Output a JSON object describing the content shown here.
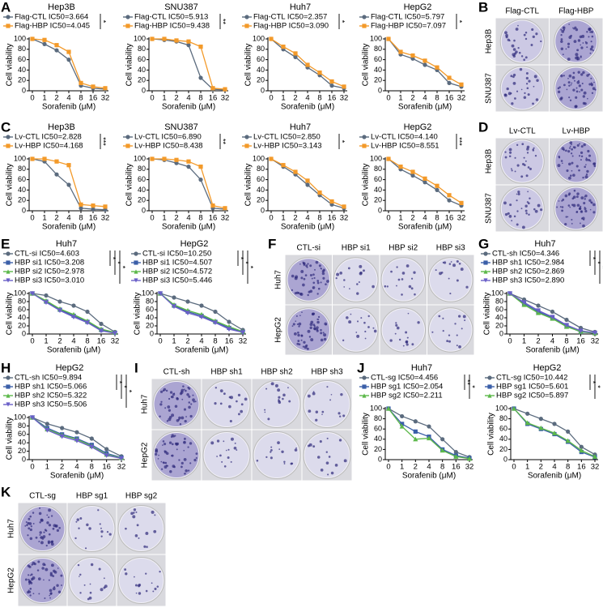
{
  "chart_data": [
    {
      "type": "line",
      "panel": "A",
      "title": "Hep3B",
      "xlabel": "Sorafenib (μM)",
      "ylabel": "Cell viability",
      "categories": [
        "0",
        "1",
        "2",
        "4",
        "8",
        "16",
        "32"
      ],
      "ylim": [
        0,
        100
      ],
      "yticks": [
        0,
        20,
        40,
        60,
        80,
        100
      ],
      "significance": [
        "*"
      ],
      "series": [
        {
          "name": "Flag-CTL IC50=3.664",
          "color": "#5b6b7e",
          "values": [
            100,
            90,
            78,
            60,
            10,
            5,
            3
          ]
        },
        {
          "name": "Flag-HBP IC50=4.045",
          "color": "#f39a2a",
          "values": [
            100,
            98,
            88,
            75,
            15,
            8,
            5
          ]
        }
      ]
    },
    {
      "type": "line",
      "title": "SNU387",
      "xlabel": "Sorafenib (μM)",
      "ylabel": "Cell viability",
      "categories": [
        "0",
        "1",
        "2",
        "4",
        "8",
        "16",
        "32"
      ],
      "ylim": [
        0,
        100
      ],
      "yticks": [
        0,
        20,
        40,
        60,
        80,
        100
      ],
      "significance": [
        "**"
      ],
      "series": [
        {
          "name": "Flag-CTL IC50=5.913",
          "color": "#5b6b7e",
          "values": [
            100,
            98,
            95,
            88,
            25,
            3,
            2
          ]
        },
        {
          "name": "Flag-HBP IC50=9.438",
          "color": "#f39a2a",
          "values": [
            100,
            100,
            97,
            95,
            85,
            5,
            3
          ]
        }
      ]
    },
    {
      "type": "line",
      "title": "Huh7",
      "xlabel": "Sorafenib (μM)",
      "ylabel": "Cell viability",
      "categories": [
        "0",
        "1",
        "2",
        "4",
        "8",
        "16",
        "32"
      ],
      "ylim": [
        0,
        100
      ],
      "yticks": [
        0,
        20,
        40,
        60,
        80,
        100
      ],
      "significance": [
        "*"
      ],
      "series": [
        {
          "name": "Flag-CTL IC50=2.357",
          "color": "#5b6b7e",
          "values": [
            100,
            80,
            65,
            45,
            30,
            10,
            5
          ]
        },
        {
          "name": "Flag-HBP IC50=3.090",
          "color": "#f39a2a",
          "values": [
            100,
            85,
            72,
            50,
            35,
            18,
            8
          ]
        }
      ]
    },
    {
      "type": "line",
      "title": "HepG2",
      "xlabel": "Sorafenib (μM)",
      "ylabel": "Cell viability",
      "categories": [
        "0",
        "1",
        "2",
        "4",
        "8",
        "16",
        "32"
      ],
      "ylim": [
        0,
        100
      ],
      "yticks": [
        0,
        20,
        40,
        60,
        80,
        100
      ],
      "significance": [
        "*"
      ],
      "series": [
        {
          "name": "Flag-CTL IC50=5.797",
          "color": "#5b6b7e",
          "values": [
            100,
            70,
            62,
            50,
            40,
            15,
            8
          ]
        },
        {
          "name": "Flag-HBP IC50=7.097",
          "color": "#f39a2a",
          "values": [
            100,
            75,
            68,
            58,
            45,
            25,
            12
          ]
        }
      ]
    },
    {
      "type": "line",
      "panel": "C",
      "title": "Hep3B",
      "xlabel": "Sorafenib (μM)",
      "ylabel": "Cell viability",
      "categories": [
        "0",
        "1",
        "2",
        "4",
        "8",
        "16",
        "32"
      ],
      "ylim": [
        0,
        100
      ],
      "yticks": [
        0,
        20,
        40,
        60,
        80,
        100
      ],
      "significance": [
        "***"
      ],
      "series": [
        {
          "name": "Lv-CTL  IC50=2.828",
          "color": "#5b6b7e",
          "values": [
            100,
            95,
            70,
            50,
            5,
            3,
            2
          ]
        },
        {
          "name": "Lv-HBP IC50=4.168",
          "color": "#f39a2a",
          "values": [
            100,
            100,
            95,
            88,
            12,
            10,
            8
          ]
        }
      ]
    },
    {
      "type": "line",
      "title": "SNU387",
      "xlabel": "Sorafenib (μM)",
      "ylabel": "Cell viability",
      "categories": [
        "0",
        "1",
        "2",
        "4",
        "8",
        "16",
        "32"
      ],
      "ylim": [
        0,
        100
      ],
      "yticks": [
        0,
        20,
        40,
        60,
        80,
        100
      ],
      "significance": [
        "**"
      ],
      "series": [
        {
          "name": "Lv-CTL  IC50=6.890",
          "color": "#5b6b7e",
          "values": [
            100,
            98,
            92,
            85,
            60,
            5,
            3
          ]
        },
        {
          "name": "Lv-HBP IC50=8.438",
          "color": "#f39a2a",
          "values": [
            100,
            100,
            98,
            95,
            85,
            10,
            5
          ]
        }
      ]
    },
    {
      "type": "line",
      "title": "Huh7",
      "xlabel": "Sorafenib (μM)",
      "ylabel": "Cell viability",
      "categories": [
        "0",
        "1",
        "2",
        "4",
        "8",
        "16",
        "32"
      ],
      "ylim": [
        0,
        100
      ],
      "yticks": [
        0,
        20,
        40,
        60,
        80,
        100
      ],
      "significance": [
        "*"
      ],
      "series": [
        {
          "name": "Lv-CTL  IC50=2.850",
          "color": "#5b6b7e",
          "values": [
            100,
            85,
            70,
            50,
            30,
            12,
            5
          ]
        },
        {
          "name": "Lv-HBP IC50=3.143",
          "color": "#f39a2a",
          "values": [
            100,
            88,
            75,
            58,
            35,
            18,
            8
          ]
        }
      ]
    },
    {
      "type": "line",
      "title": "HepG2",
      "xlabel": "Sorafenib (μM)",
      "ylabel": "Cell viability",
      "categories": [
        "0",
        "1",
        "2",
        "4",
        "8",
        "16",
        "32"
      ],
      "ylim": [
        0,
        100
      ],
      "yticks": [
        0,
        20,
        40,
        60,
        80,
        100
      ],
      "significance": [
        "***"
      ],
      "series": [
        {
          "name": "Lv-CTL  IC50=4.140",
          "color": "#5b6b7e",
          "values": [
            100,
            80,
            68,
            55,
            40,
            20,
            10
          ]
        },
        {
          "name": "Lv-HBP IC50=8.551",
          "color": "#f39a2a",
          "values": [
            100,
            85,
            75,
            62,
            48,
            30,
            15
          ]
        }
      ]
    },
    {
      "type": "line",
      "panel": "E",
      "title": "Huh7",
      "xlabel": "Sorafenib (μM)",
      "ylabel": "Cell viability",
      "categories": [
        "0",
        "1",
        "2",
        "4",
        "8",
        "16",
        "32"
      ],
      "ylim": [
        0,
        100
      ],
      "yticks": [
        0,
        20,
        40,
        60,
        80,
        100
      ],
      "significance": [
        "*",
        "*",
        "*"
      ],
      "series": [
        {
          "name": "CTL-si  IC50=4.603",
          "color": "#5b6b7e",
          "values": [
            100,
            95,
            80,
            70,
            55,
            25,
            5
          ]
        },
        {
          "name": "HBP si1 IC50=3.208",
          "color": "#3b5fa8",
          "values": [
            100,
            80,
            60,
            45,
            30,
            10,
            3
          ]
        },
        {
          "name": "HBP si2 IC50=2.978",
          "color": "#5cb84a",
          "values": [
            100,
            82,
            62,
            48,
            32,
            12,
            4
          ]
        },
        {
          "name": "HBP si3 IC50=3.010",
          "color": "#6a5fc8",
          "values": [
            100,
            78,
            58,
            42,
            28,
            8,
            2
          ]
        }
      ]
    },
    {
      "type": "line",
      "title": "HepG2",
      "xlabel": "Sorafenib (μM)",
      "ylabel": "Cell viability",
      "categories": [
        "0",
        "1",
        "2",
        "4",
        "8",
        "16",
        "32"
      ],
      "ylim": [
        0,
        100
      ],
      "yticks": [
        0,
        20,
        40,
        60,
        80,
        100
      ],
      "significance": [
        "*",
        "*",
        "*"
      ],
      "series": [
        {
          "name": "CTL-si  IC50=10.250",
          "color": "#5b6b7e",
          "values": [
            100,
            90,
            80,
            70,
            55,
            30,
            10
          ]
        },
        {
          "name": "HBP si1 IC50=4.507",
          "color": "#3b5fa8",
          "values": [
            100,
            70,
            55,
            45,
            30,
            15,
            5
          ]
        },
        {
          "name": "HBP si2 IC50=4.572",
          "color": "#5cb84a",
          "values": [
            100,
            72,
            58,
            48,
            32,
            18,
            6
          ]
        },
        {
          "name": "HBP si3 IC50=5.446",
          "color": "#6a5fc8",
          "values": [
            100,
            68,
            52,
            42,
            28,
            12,
            4
          ]
        }
      ]
    },
    {
      "type": "line",
      "panel": "G",
      "title": "Huh7",
      "xlabel": "Sorafenib (μM)",
      "ylabel": "Cell viability",
      "categories": [
        "0",
        "1",
        "2",
        "4",
        "8",
        "16",
        "32"
      ],
      "ylim": [
        0,
        100
      ],
      "yticks": [
        0,
        20,
        40,
        60,
        80,
        100
      ],
      "significance": [
        "*",
        "*",
        "*"
      ],
      "series": [
        {
          "name": "CTL-sh  IC50=4.346",
          "color": "#5b6b7e",
          "values": [
            100,
            85,
            70,
            55,
            35,
            15,
            5
          ]
        },
        {
          "name": "HBP sh1 IC50=2.984",
          "color": "#3b5fa8",
          "values": [
            100,
            75,
            55,
            40,
            20,
            5,
            2
          ]
        },
        {
          "name": "HBP sh2 IC50=2.869",
          "color": "#5cb84a",
          "values": [
            100,
            72,
            52,
            38,
            18,
            6,
            2
          ]
        },
        {
          "name": "HBP sh3 IC50=2.890",
          "color": "#6a5fc8",
          "values": [
            100,
            78,
            58,
            42,
            22,
            8,
            3
          ]
        }
      ]
    },
    {
      "type": "line",
      "panel": "H",
      "title": "HepG2",
      "xlabel": "Sorafenib (μM)",
      "ylabel": "Cell viability",
      "categories": [
        "0",
        "1",
        "2",
        "4",
        "8",
        "16",
        "32"
      ],
      "ylim": [
        0,
        100
      ],
      "yticks": [
        0,
        20,
        40,
        60,
        80,
        100
      ],
      "significance": [
        "*",
        "*",
        "*"
      ],
      "series": [
        {
          "name": "CTL-sh  IC50=9.894",
          "color": "#5b6b7e",
          "values": [
            100,
            85,
            75,
            65,
            50,
            25,
            8
          ]
        },
        {
          "name": "HBP sh1 IC50=5.066",
          "color": "#3b5fa8",
          "values": [
            100,
            75,
            60,
            50,
            35,
            15,
            5
          ]
        },
        {
          "name": "HBP sh2 IC50=5.322",
          "color": "#5cb84a",
          "values": [
            100,
            72,
            58,
            48,
            32,
            12,
            4
          ]
        },
        {
          "name": "HBP sh3 IC50=5.506",
          "color": "#6a5fc8",
          "values": [
            100,
            70,
            55,
            45,
            30,
            10,
            3
          ]
        }
      ]
    },
    {
      "type": "line",
      "panel": "J",
      "title": "Huh7",
      "xlabel": "Sorafenib (μM)",
      "ylabel": "Cell viability",
      "categories": [
        "0",
        "1",
        "2",
        "4",
        "8",
        "16",
        "32"
      ],
      "ylim": [
        0,
        100
      ],
      "yticks": [
        0,
        20,
        40,
        60,
        80,
        100
      ],
      "significance": [
        "**",
        "*"
      ],
      "series": [
        {
          "name": "CTL-sg  IC50=4.456",
          "color": "#5b6b7e",
          "values": [
            100,
            85,
            75,
            65,
            40,
            15,
            5
          ]
        },
        {
          "name": "HBP sg1 IC50=2.054",
          "color": "#3b5fa8",
          "values": [
            100,
            70,
            55,
            45,
            20,
            8,
            3
          ]
        },
        {
          "name": "HBP sg2 IC50=2.211",
          "color": "#5cb84a",
          "values": [
            100,
            65,
            40,
            42,
            18,
            6,
            2
          ]
        }
      ]
    },
    {
      "type": "line",
      "title": "HepG2",
      "xlabel": "Sorafenib (μM)",
      "ylabel": "Cell viability",
      "categories": [
        "0",
        "1",
        "2",
        "4",
        "8",
        "16",
        "32"
      ],
      "ylim": [
        0,
        100
      ],
      "yticks": [
        0,
        20,
        40,
        60,
        80,
        100
      ],
      "significance": [
        "*",
        "*"
      ],
      "series": [
        {
          "name": "CTL-sg  IC50=10.442",
          "color": "#5b6b7e",
          "values": [
            100,
            90,
            80,
            70,
            55,
            25,
            10
          ]
        },
        {
          "name": "HBP sg1 IC50=5.601",
          "color": "#3b5fa8",
          "values": [
            100,
            70,
            60,
            50,
            35,
            15,
            5
          ]
        },
        {
          "name": "HBP sg2 IC50=5.897",
          "color": "#5cb84a",
          "values": [
            100,
            72,
            62,
            52,
            37,
            18,
            6
          ]
        }
      ]
    }
  ],
  "image_panels": [
    {
      "panel": "B",
      "columns": [
        "Flag-CTL",
        "Flag-HBP"
      ],
      "rows": [
        "Hep3B",
        "SNU387"
      ]
    },
    {
      "panel": "D",
      "columns": [
        "Lv-CTL",
        "Lv-HBP"
      ],
      "rows": [
        "Hep3B",
        "SNU387"
      ]
    },
    {
      "panel": "F",
      "columns": [
        "CTL-si",
        "HBP si1",
        "HBP si2",
        "HBP si3"
      ],
      "rows": [
        "Huh7",
        "HepG2"
      ]
    },
    {
      "panel": "I",
      "columns": [
        "CTL-sh",
        "HBP sh1",
        "HBP sh2",
        "HBP sh3"
      ],
      "rows": [
        "Huh7",
        "HepG2"
      ]
    },
    {
      "panel": "K",
      "columns": [
        "CTL-sg",
        "HBP sg1",
        "HBP sg2"
      ],
      "rows": [
        "Huh7",
        "HepG2"
      ]
    }
  ]
}
